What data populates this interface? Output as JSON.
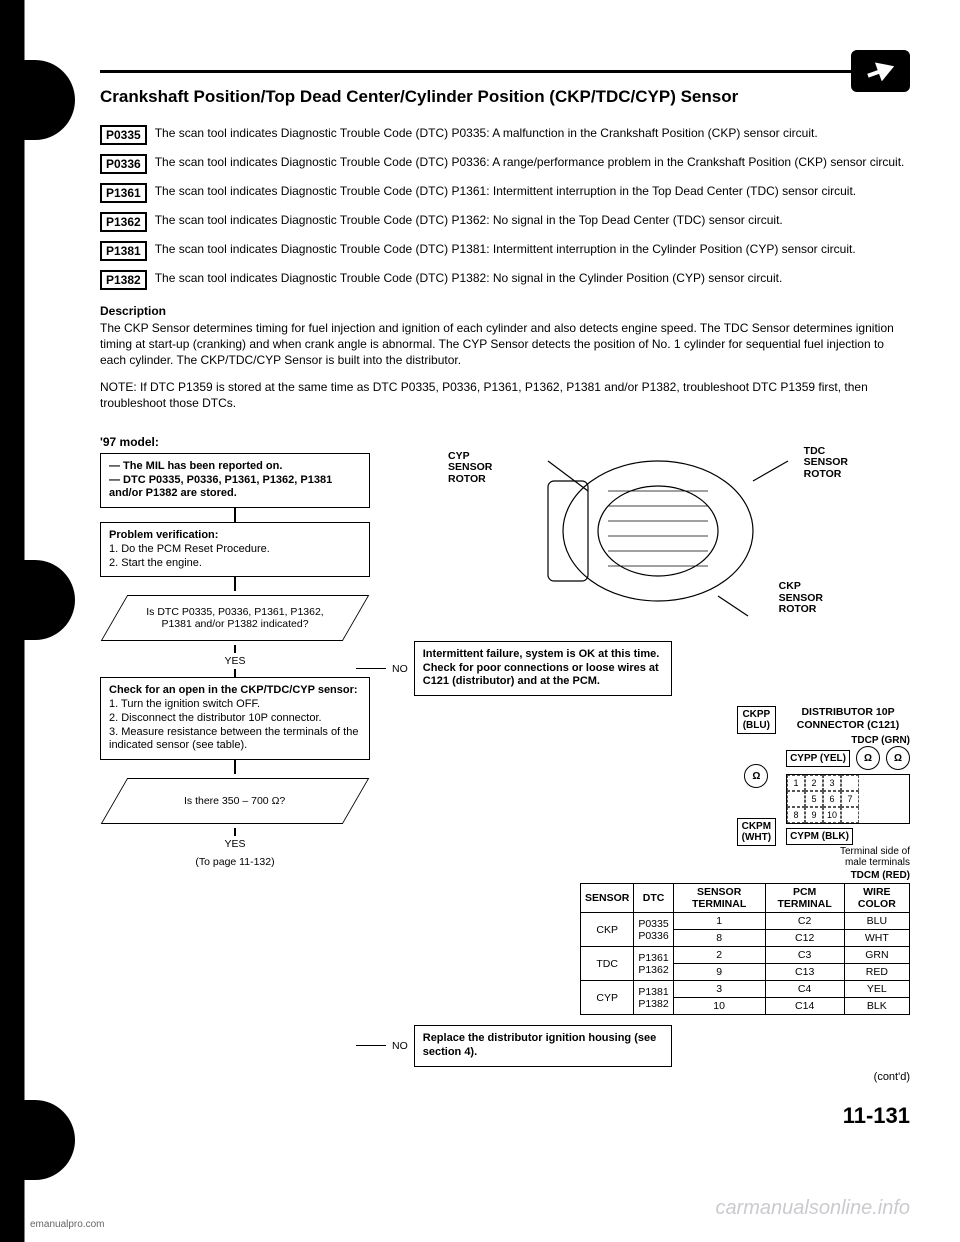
{
  "header": {
    "title": "Crankshaft Position/Top Dead Center/Cylinder Position (CKP/TDC/CYP) Sensor"
  },
  "dtcs": [
    {
      "code": "P0335",
      "text": "The scan tool indicates Diagnostic Trouble Code (DTC) P0335: A malfunction in the Crankshaft Position (CKP) sensor circuit."
    },
    {
      "code": "P0336",
      "text": "The scan tool indicates Diagnostic Trouble Code (DTC) P0336: A range/performance problem in the Crankshaft Position (CKP) sensor circuit."
    },
    {
      "code": "P1361",
      "text": "The scan tool indicates Diagnostic Trouble Code (DTC) P1361: Intermittent interruption in the Top Dead Center (TDC) sensor circuit."
    },
    {
      "code": "P1362",
      "text": "The scan tool indicates Diagnostic Trouble Code (DTC) P1362: No signal in the Top Dead Center (TDC) sensor circuit."
    },
    {
      "code": "P1381",
      "text": "The scan tool indicates Diagnostic Trouble Code (DTC) P1381: Intermittent interruption in the Cylinder Position (CYP) sensor circuit."
    },
    {
      "code": "P1382",
      "text": "The scan tool indicates Diagnostic Trouble Code (DTC) P1382: No signal in the Cylinder Position (CYP) sensor circuit."
    }
  ],
  "description": {
    "label": "Description",
    "text": "The CKP Sensor determines timing for fuel injection and ignition of each cylinder and also detects engine speed. The TDC Sensor determines ignition timing at start-up (cranking) and when crank angle is abnormal. The CYP Sensor detects the position of No. 1 cylinder for sequential fuel injection to each cylinder. The CKP/TDC/CYP Sensor is built into the distributor."
  },
  "note": "NOTE: If DTC P1359 is stored at the same time as DTC P0335, P0336, P1361, P1362, P1381 and/or P1382, troubleshoot DTC P1359 first, then troubleshoot those DTCs.",
  "model_label": "'97 model:",
  "flowchart": {
    "box1": "— The MIL has been reported on.\n— DTC P0335, P0336, P1361, P1362, P1381 and/or P1382 are stored.",
    "box2_title": "Problem verification:",
    "box2_items": [
      "1. Do the PCM Reset Procedure.",
      "2. Start the engine."
    ],
    "diamond1": "Is DTC P0335, P0336, P1361, P1362, P1381 and/or P1382 indicated?",
    "no1_box": "Intermittent failure, system is OK at this time. Check for poor connections or loose wires at C121 (distributor) and at the PCM.",
    "box3_title": "Check for an open in the CKP/TDC/CYP sensor:",
    "box3_items": [
      "1. Turn the ignition switch OFF.",
      "2. Disconnect the distributor 10P connector.",
      "3. Measure resistance between the terminals of the indicated sensor (see table)."
    ],
    "diamond2": "Is there 350 – 700 Ω?",
    "no2_box": "Replace the distributor ignition housing (see section 4).",
    "yes": "YES",
    "no": "NO",
    "to_page": "(To page 11-132)"
  },
  "diagram_labels": {
    "cyp": "CYP\nSENSOR\nROTOR",
    "tdc": "TDC\nSENSOR\nROTOR",
    "ckp": "CKP\nSENSOR\nROTOR"
  },
  "connector": {
    "title": "DISTRIBUTOR 10P\nCONNECTOR (C121)",
    "tdcp": "TDCP (GRN)",
    "cypp": "CYPP (YEL)",
    "cypm": "CYPM (BLK)",
    "tdcm": "TDCM (RED)",
    "ckpp": "CKPP\n(BLU)",
    "ckpm": "CKPM\n(WHT)",
    "pins": [
      "1",
      "2",
      "3",
      "",
      "",
      "5",
      "6",
      "7",
      "8",
      "9",
      "10",
      ""
    ],
    "terminal_note": "Terminal side of\nmale terminals"
  },
  "sensor_table": {
    "headers": [
      "SENSOR",
      "DTC",
      "SENSOR TERMINAL",
      "PCM TERMINAL",
      "WIRE COLOR"
    ],
    "rows": [
      [
        "CKP",
        "P0335\nP0336",
        "1",
        "C2",
        "BLU"
      ],
      [
        "",
        "",
        "8",
        "C12",
        "WHT"
      ],
      [
        "TDC",
        "P1361\nP1362",
        "2",
        "C3",
        "GRN"
      ],
      [
        "",
        "",
        "9",
        "C13",
        "RED"
      ],
      [
        "CYP",
        "P1381\nP1382",
        "3",
        "C4",
        "YEL"
      ],
      [
        "",
        "",
        "10",
        "C14",
        "BLK"
      ]
    ]
  },
  "footer": {
    "contd": "(cont'd)",
    "page_num": "11-131",
    "watermark": "carmanualsonline.info",
    "source": "emanualpro.com"
  }
}
